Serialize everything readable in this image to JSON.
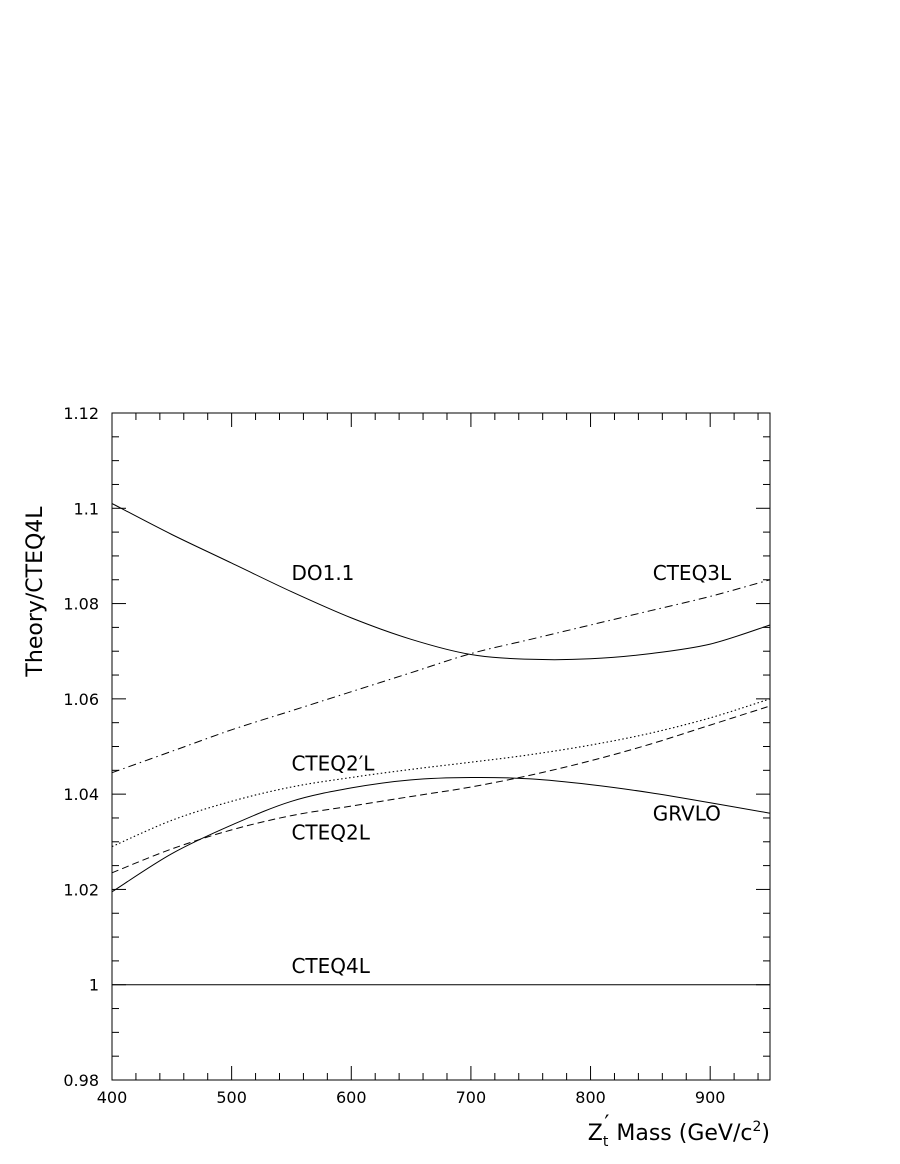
{
  "chart_data": {
    "type": "line",
    "title": "",
    "ylabel": "Theory/CTEQ4L",
    "xlabel": {
      "prefix": "Z",
      "subscript": "t",
      "prime": "′",
      "text": " Mass  (GeV/c",
      "superscript": "2",
      "suffix": ")"
    },
    "xlim": [
      400,
      950
    ],
    "ylim": [
      0.98,
      1.12
    ],
    "grid": false,
    "x_ticks": [
      400,
      500,
      600,
      700,
      800,
      900
    ],
    "x_tick_labels": [
      "400",
      "500",
      "600",
      "700",
      "800",
      "900"
    ],
    "y_ticks": [
      0.98,
      1.0,
      1.02,
      1.04,
      1.06,
      1.08,
      1.1,
      1.12
    ],
    "y_tick_labels": [
      "0.98",
      "1",
      "1.02",
      "1.04",
      "1.06",
      "1.08",
      "1.1",
      "1.12"
    ],
    "series": [
      {
        "name": "DO1.1",
        "style": "solid",
        "x": [
          400,
          450,
          500,
          550,
          600,
          650,
          700,
          750,
          800,
          850,
          900,
          950
        ],
        "y": [
          1.101,
          1.0945,
          1.0885,
          1.0825,
          1.077,
          1.0725,
          1.0693,
          1.0683,
          1.0684,
          1.0695,
          1.0715,
          1.0755
        ]
      },
      {
        "name": "CTEQ3L",
        "style": "dashdot",
        "x": [
          400,
          450,
          500,
          550,
          600,
          650,
          700,
          750,
          800,
          850,
          900,
          950
        ],
        "y": [
          1.0445,
          1.049,
          1.0535,
          1.0575,
          1.0615,
          1.0655,
          1.0695,
          1.0725,
          1.0755,
          1.0785,
          1.0815,
          1.085
        ]
      },
      {
        "name": "CTEQ2′L",
        "style": "dotted",
        "x": [
          400,
          450,
          500,
          550,
          600,
          650,
          700,
          750,
          800,
          850,
          900,
          950
        ],
        "y": [
          1.029,
          1.0345,
          1.0385,
          1.0415,
          1.0435,
          1.0452,
          1.0467,
          1.0483,
          1.0503,
          1.0528,
          1.056,
          1.06
        ]
      },
      {
        "name": "CTEQ2L",
        "style": "dashed",
        "x": [
          400,
          450,
          500,
          550,
          600,
          650,
          700,
          750,
          800,
          850,
          900,
          950
        ],
        "y": [
          1.0235,
          1.0285,
          1.0325,
          1.0355,
          1.0375,
          1.0395,
          1.0415,
          1.044,
          1.047,
          1.0505,
          1.0545,
          1.0585
        ]
      },
      {
        "name": "GRVLO",
        "style": "solid",
        "x": [
          400,
          450,
          500,
          550,
          600,
          650,
          700,
          750,
          800,
          850,
          900,
          950
        ],
        "y": [
          1.0195,
          1.0275,
          1.0335,
          1.0385,
          1.0413,
          1.043,
          1.0435,
          1.0432,
          1.042,
          1.0403,
          1.0382,
          1.036
        ]
      },
      {
        "name": "CTEQ4L",
        "style": "solid",
        "x": [
          400,
          950
        ],
        "y": [
          1.0,
          1.0
        ]
      }
    ],
    "annotations": [
      {
        "text": "DO1.1",
        "x": 550,
        "y": 1.085
      },
      {
        "text": "CTEQ3L",
        "x": 852,
        "y": 1.085
      },
      {
        "text": "CTEQ2′L",
        "x": 550,
        "y": 1.045
      },
      {
        "text": "GRVLO",
        "x": 852,
        "y": 1.0345
      },
      {
        "text": "CTEQ2L",
        "x": 550,
        "y": 1.0305
      },
      {
        "text": "CTEQ4L",
        "x": 550,
        "y": 1.0025
      }
    ]
  }
}
